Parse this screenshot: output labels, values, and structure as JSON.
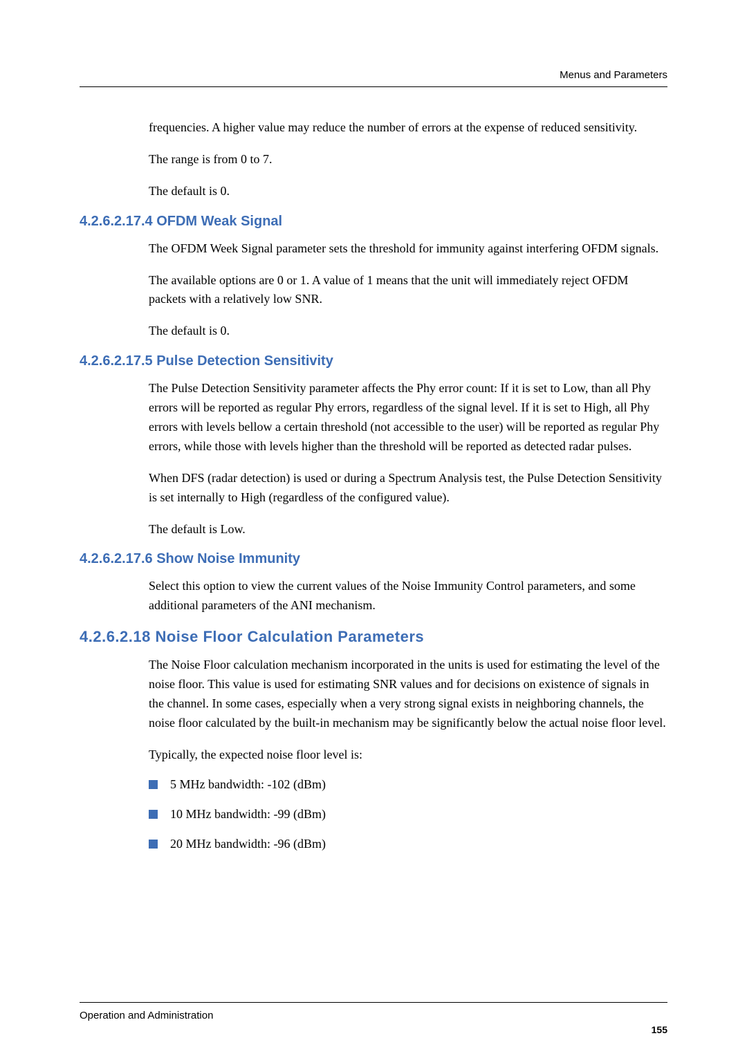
{
  "header": {
    "running_title": "Menus and Parameters"
  },
  "intro": {
    "p1": "frequencies. A higher value may reduce the number of errors at the expense of reduced sensitivity.",
    "p2": "The range is from 0 to 7.",
    "p3": "The default is 0."
  },
  "sec_ofdm": {
    "heading": "4.2.6.2.17.4 OFDM Weak Signal",
    "p1": "The OFDM Week Signal parameter sets the threshold for immunity against interfering OFDM signals.",
    "p2": "The available options are 0 or 1. A value of 1 means that the unit will immediately reject OFDM packets with a relatively low SNR.",
    "p3": "The default is 0."
  },
  "sec_pulse": {
    "heading": "4.2.6.2.17.5 Pulse Detection Sensitivity",
    "p1": "The Pulse Detection Sensitivity parameter affects the Phy error count: If it is set to Low, than all Phy errors will be reported as regular Phy errors, regardless of the signal level. If it is set to High, all Phy errors with levels bellow a certain threshold (not accessible to the user) will be reported as regular Phy errors, while those with levels higher than the threshold will be reported as detected radar pulses.",
    "p2": "When DFS (radar detection) is used or during a Spectrum Analysis test, the Pulse Detection Sensitivity is set internally to High (regardless of the configured value).",
    "p3": "The default is Low."
  },
  "sec_show": {
    "heading": "4.2.6.2.17.6 Show Noise Immunity",
    "p1": "Select this option to view the current values of the Noise Immunity Control parameters, and some additional parameters of the ANI mechanism."
  },
  "sec_noise": {
    "heading": "4.2.6.2.18 Noise Floor Calculation Parameters",
    "p1": "The Noise Floor calculation mechanism incorporated in the units is used for estimating the level of the noise floor. This value is used for estimating SNR values and for decisions on existence of signals in the channel. In some cases, especially when a very strong signal exists in neighboring channels, the noise floor calculated by the built-in mechanism may be significantly below the actual noise floor level.",
    "p2": "Typically, the expected noise floor level is:",
    "bullets": {
      "b1": "5 MHz bandwidth: -102 (dBm)",
      "b2": "10 MHz bandwidth: -99 (dBm)",
      "b3": "20 MHz bandwidth: -96 (dBm)"
    }
  },
  "footer": {
    "text": "Operation and Administration",
    "page": "155"
  },
  "colors": {
    "heading_color": "#3d6db5",
    "bullet_color": "#3d6db5",
    "text_color": "#000000",
    "background": "#ffffff"
  }
}
